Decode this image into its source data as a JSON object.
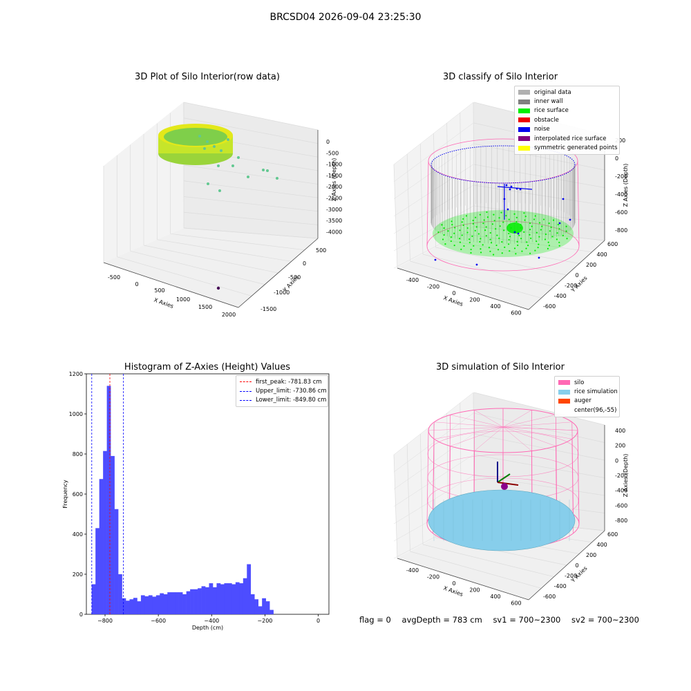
{
  "suptitle": "BRCSD04 2026-09-04 23:25:30",
  "colors": {
    "original_data": "#b0b0b0",
    "inner_wall": "#808080",
    "rice_surface": "#00ee00",
    "obstacle": "#ee0000",
    "noise": "#0000ee",
    "interpolated": "#800080",
    "symmetric": "#ffff00",
    "silo": "#ff69b4",
    "rice_sim": "#87ceeb",
    "auger": "#ff4500",
    "hist_bar": "#4d4dff"
  },
  "panels": {
    "raw": {
      "title": "3D Plot of Silo Interior(row data)",
      "xlabel": "X Axies",
      "ylabel": "Y Axies",
      "zlabel": "Z Axies (Depth)",
      "xticks": [
        "-500",
        "0",
        "500",
        "1000",
        "1500",
        "2000"
      ],
      "yticks": [
        "500",
        "0",
        "-500",
        "-1000",
        "-1500"
      ],
      "zticks": [
        "0",
        "-500",
        "-1000",
        "-1500",
        "-2000",
        "-2500",
        "-3000",
        "-3500",
        "-4000"
      ]
    },
    "classify": {
      "title": "3D classify of Silo Interior",
      "xlabel": "X Axies",
      "ylabel": "Y Axies",
      "zlabel": "Z Axies (Depth)",
      "xticks": [
        "-400",
        "-200",
        "0",
        "200",
        "400",
        "600"
      ],
      "yticks": [
        "600",
        "400",
        "200",
        "0",
        "-200",
        "-400",
        "-600"
      ],
      "zticks": [
        "200",
        "0",
        "-200",
        "-400",
        "-600",
        "-800"
      ],
      "legend": [
        {
          "label": "original data",
          "color_key": "original_data"
        },
        {
          "label": "inner wall",
          "color_key": "inner_wall"
        },
        {
          "label": "rice surface",
          "color_key": "rice_surface"
        },
        {
          "label": "obstacle",
          "color_key": "obstacle"
        },
        {
          "label": "noise",
          "color_key": "noise"
        },
        {
          "label": "interpolated rice surface",
          "color_key": "interpolated"
        },
        {
          "label": "symmetric generated points",
          "color_key": "symmetric"
        }
      ]
    },
    "histogram": {
      "title": "Histogram of Z-Axies (Height) Values",
      "xlabel": "Depth (cm)",
      "ylabel": "Frequency",
      "legend": [
        {
          "label": "first_peak: -781.83 cm",
          "color": "#ff0000"
        },
        {
          "label": "Upper_limit: -730.86 cm",
          "color": "#0000ff"
        },
        {
          "label": "Lower_limit: -849.80 cm",
          "color": "#0000ff"
        }
      ]
    },
    "simulation": {
      "title": "3D simulation of Silo Interior",
      "xlabel": "X Axies",
      "ylabel": "Y Axies",
      "zlabel": "Z Axies (Depth)",
      "xticks": [
        "-400",
        "-200",
        "0",
        "200",
        "400",
        "600"
      ],
      "yticks": [
        "600",
        "400",
        "200",
        "0",
        "-200",
        "-400",
        "-600"
      ],
      "zticks": [
        "400",
        "200",
        "0",
        "-200",
        "-400",
        "-600",
        "-800"
      ],
      "legend": [
        {
          "label": "silo",
          "color_key": "silo"
        },
        {
          "label": "rice simulation",
          "color_key": "rice_sim"
        },
        {
          "label": "auger",
          "color_key": "auger"
        },
        {
          "label": "center(96,-55)",
          "color_key": ""
        }
      ]
    }
  },
  "footer": {
    "flag": "flag = 0",
    "avg_depth": "avgDepth = 783 cm",
    "sv1": "sv1 = 700~2300",
    "sv2": "sv2 = 700~2300"
  },
  "chart_data": [
    {
      "type": "scatter",
      "title": "3D Plot of Silo Interior(row data)",
      "xlabel": "X Axies",
      "ylabel": "Y Axies",
      "zlabel": "Z Axies (Depth)",
      "xlim": [
        -700,
        2100
      ],
      "ylim": [
        -1600,
        700
      ],
      "zlim": [
        -4200,
        200
      ]
    },
    {
      "type": "scatter",
      "title": "3D classify of Silo Interior",
      "xlabel": "X Axies",
      "ylabel": "Y Axies",
      "zlabel": "Z Axies (Depth)",
      "xlim": [
        -500,
        700
      ],
      "ylim": [
        -700,
        700
      ],
      "zlim": [
        -900,
        250
      ],
      "series": [
        {
          "name": "original data"
        },
        {
          "name": "inner wall"
        },
        {
          "name": "rice surface"
        },
        {
          "name": "obstacle"
        },
        {
          "name": "noise"
        },
        {
          "name": "interpolated rice surface"
        },
        {
          "name": "symmetric generated points"
        }
      ]
    },
    {
      "type": "bar",
      "title": "Histogram of Z-Axies (Height) Values",
      "xlabel": "Depth (cm)",
      "ylabel": "Frequency",
      "xlim": [
        -870,
        40
      ],
      "ylim": [
        0,
        1200
      ],
      "xticks": [
        -800,
        -600,
        -400,
        -200,
        0
      ],
      "yticks": [
        0,
        200,
        400,
        600,
        800,
        1000,
        1200
      ],
      "bin_start": -850,
      "bin_width": 14.2,
      "values": [
        150,
        430,
        675,
        815,
        1140,
        790,
        525,
        200,
        80,
        68,
        75,
        82,
        65,
        95,
        90,
        95,
        88,
        95,
        105,
        100,
        110,
        110,
        110,
        110,
        100,
        115,
        125,
        125,
        130,
        140,
        135,
        155,
        135,
        155,
        150,
        155,
        155,
        150,
        160,
        155,
        180,
        250,
        100,
        75,
        40,
        80,
        65,
        22
      ],
      "vlines": [
        {
          "label": "first_peak: -781.83 cm",
          "x": -781.83,
          "color": "#ff0000"
        },
        {
          "label": "Upper_limit: -730.86 cm",
          "x": -730.86,
          "color": "#0000ff"
        },
        {
          "label": "Lower_limit: -849.80 cm",
          "x": -849.8,
          "color": "#0000ff"
        }
      ],
      "legend": "top-right"
    },
    {
      "type": "scatter",
      "title": "3D simulation of Silo Interior",
      "xlabel": "X Axies",
      "ylabel": "Y Axies",
      "zlabel": "Z Axies (Depth)",
      "xlim": [
        -500,
        700
      ],
      "ylim": [
        -700,
        700
      ],
      "zlim": [
        -900,
        450
      ],
      "series": [
        {
          "name": "silo"
        },
        {
          "name": "rice simulation"
        },
        {
          "name": "auger"
        }
      ],
      "center": [
        96,
        -55
      ]
    }
  ]
}
